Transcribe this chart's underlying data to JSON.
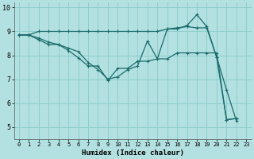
{
  "xlabel": "Humidex (Indice chaleur)",
  "bg_color": "#b3e0e0",
  "grid_color": "#8ecece",
  "line_color": "#1a6b6b",
  "xlim": [
    -0.5,
    23.5
  ],
  "ylim": [
    4.5,
    10.2
  ],
  "yticks": [
    5,
    6,
    7,
    8,
    9,
    10
  ],
  "xticks": [
    0,
    1,
    2,
    3,
    4,
    5,
    6,
    7,
    8,
    9,
    10,
    11,
    12,
    13,
    14,
    15,
    16,
    17,
    18,
    19,
    20,
    21,
    22,
    23
  ],
  "line1_x": [
    0,
    1,
    2,
    3,
    4,
    5,
    6,
    7,
    8,
    9,
    10,
    11,
    12,
    13,
    14,
    15,
    16,
    17,
    18,
    19,
    20,
    21,
    22
  ],
  "line1_y": [
    8.85,
    8.85,
    9.0,
    9.0,
    9.0,
    9.0,
    9.0,
    9.0,
    9.0,
    9.0,
    9.0,
    9.0,
    9.0,
    9.0,
    9.0,
    9.1,
    9.15,
    9.2,
    9.15,
    9.15,
    7.92,
    5.3,
    5.35
  ],
  "line2_x": [
    0,
    1,
    2,
    3,
    4,
    5,
    6,
    7,
    8,
    9,
    10,
    11,
    12,
    13,
    14,
    15,
    16,
    17,
    18,
    19,
    20,
    21,
    22
  ],
  "line2_y": [
    8.85,
    8.85,
    8.65,
    8.45,
    8.45,
    8.2,
    7.9,
    7.55,
    7.55,
    6.95,
    7.45,
    7.45,
    7.75,
    7.75,
    7.85,
    7.85,
    8.1,
    8.1,
    8.1,
    8.1,
    8.1,
    5.3,
    5.35
  ],
  "line3_x": [
    0,
    1,
    2,
    3,
    4,
    5,
    6,
    7,
    8,
    9,
    10,
    11,
    12,
    13,
    14,
    15,
    16,
    17,
    18,
    19,
    20,
    21,
    22
  ],
  "line3_y": [
    8.85,
    8.85,
    8.72,
    8.55,
    8.45,
    8.3,
    8.15,
    7.7,
    7.4,
    7.0,
    7.1,
    7.4,
    7.55,
    8.6,
    7.85,
    9.1,
    9.1,
    9.25,
    9.7,
    9.2,
    7.92,
    6.55,
    5.25
  ]
}
